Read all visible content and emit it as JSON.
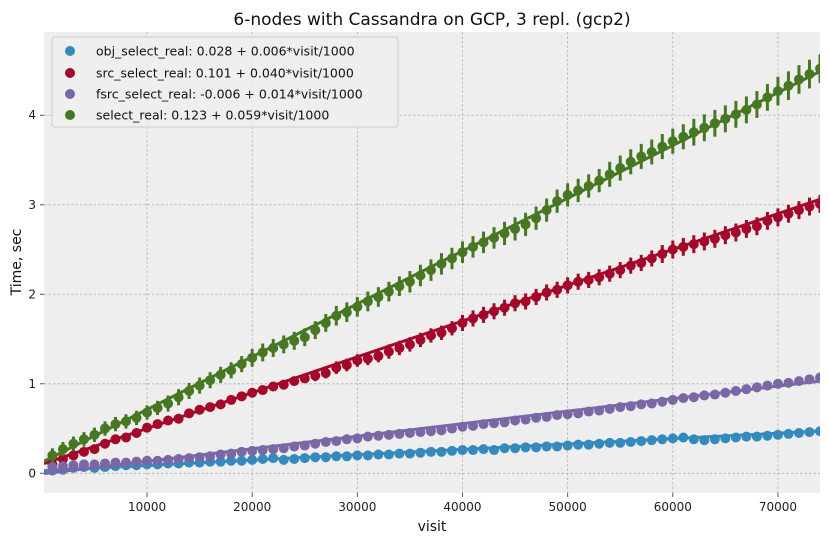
{
  "chart_data": {
    "type": "scatter",
    "title": "6-nodes with Cassandra on GCP, 3 repl. (gcp2)",
    "xlabel": "visit",
    "ylabel": "Time, sec",
    "xlim": [
      200,
      74000
    ],
    "ylim": [
      -0.22,
      4.93
    ],
    "xticks": [
      10000,
      20000,
      30000,
      40000,
      50000,
      60000,
      70000
    ],
    "yticks": [
      0,
      1,
      2,
      3,
      4
    ],
    "grid": true,
    "legend_position": "top-left",
    "x_start": 1000,
    "x_step": 1000,
    "series": [
      {
        "name": "obj_select_real: 0.028 + 0.006*visit/1000",
        "color": "#348abd",
        "fit": {
          "intercept": 0.028,
          "slope": 0.006
        },
        "values": [
          0.03,
          0.04,
          0.06,
          0.07,
          0.06,
          0.07,
          0.08,
          0.09,
          0.09,
          0.1,
          0.1,
          0.11,
          0.11,
          0.12,
          0.12,
          0.13,
          0.13,
          0.14,
          0.14,
          0.15,
          0.16,
          0.17,
          0.15,
          0.16,
          0.17,
          0.18,
          0.18,
          0.19,
          0.19,
          0.2,
          0.2,
          0.21,
          0.21,
          0.22,
          0.22,
          0.23,
          0.24,
          0.24,
          0.25,
          0.26,
          0.26,
          0.27,
          0.26,
          0.28,
          0.28,
          0.29,
          0.29,
          0.3,
          0.3,
          0.31,
          0.32,
          0.32,
          0.33,
          0.34,
          0.34,
          0.35,
          0.36,
          0.37,
          0.38,
          0.39,
          0.4,
          0.38,
          0.37,
          0.38,
          0.39,
          0.4,
          0.41,
          0.41,
          0.42,
          0.43,
          0.44,
          0.45,
          0.46,
          0.47
        ],
        "errors": [
          0.02,
          0.02,
          0.02,
          0.02,
          0.02,
          0.02,
          0.02,
          0.02,
          0.02,
          0.02,
          0.02,
          0.02,
          0.02,
          0.02,
          0.02,
          0.02,
          0.02,
          0.02,
          0.02,
          0.02,
          0.02,
          0.02,
          0.02,
          0.02,
          0.02,
          0.02,
          0.02,
          0.02,
          0.02,
          0.02,
          0.02,
          0.02,
          0.02,
          0.02,
          0.02,
          0.02,
          0.02,
          0.02,
          0.02,
          0.02,
          0.02,
          0.02,
          0.02,
          0.02,
          0.02,
          0.02,
          0.02,
          0.02,
          0.02,
          0.02,
          0.02,
          0.02,
          0.02,
          0.02,
          0.02,
          0.02,
          0.02,
          0.02,
          0.02,
          0.02,
          0.02,
          0.02,
          0.02,
          0.02,
          0.02,
          0.02,
          0.02,
          0.02,
          0.02,
          0.02,
          0.02,
          0.02,
          0.02,
          0.02
        ]
      },
      {
        "name": "src_select_real: 0.101 + 0.040*visit/1000",
        "color": "#a60628",
        "fit": {
          "intercept": 0.101,
          "slope": 0.04
        },
        "values": [
          0.1,
          0.16,
          0.2,
          0.24,
          0.27,
          0.33,
          0.38,
          0.4,
          0.45,
          0.51,
          0.55,
          0.59,
          0.61,
          0.67,
          0.71,
          0.74,
          0.77,
          0.82,
          0.86,
          0.9,
          0.93,
          0.97,
          0.99,
          1.03,
          1.06,
          1.09,
          1.12,
          1.18,
          1.21,
          1.26,
          1.28,
          1.31,
          1.36,
          1.4,
          1.44,
          1.49,
          1.54,
          1.57,
          1.62,
          1.68,
          1.73,
          1.77,
          1.81,
          1.85,
          1.9,
          1.92,
          1.97,
          2.02,
          2.05,
          2.1,
          2.14,
          2.16,
          2.19,
          2.23,
          2.27,
          2.32,
          2.35,
          2.4,
          2.45,
          2.5,
          2.53,
          2.56,
          2.59,
          2.62,
          2.66,
          2.69,
          2.73,
          2.76,
          2.82,
          2.86,
          2.9,
          2.94,
          2.98,
          3.01
        ],
        "errors": [
          0.04,
          0.04,
          0.04,
          0.04,
          0.04,
          0.04,
          0.04,
          0.04,
          0.04,
          0.04,
          0.04,
          0.04,
          0.04,
          0.04,
          0.04,
          0.04,
          0.04,
          0.04,
          0.04,
          0.04,
          0.05,
          0.05,
          0.05,
          0.05,
          0.05,
          0.06,
          0.06,
          0.07,
          0.07,
          0.07,
          0.07,
          0.07,
          0.08,
          0.08,
          0.08,
          0.08,
          0.08,
          0.08,
          0.08,
          0.09,
          0.09,
          0.09,
          0.09,
          0.09,
          0.09,
          0.09,
          0.09,
          0.09,
          0.09,
          0.09,
          0.09,
          0.09,
          0.09,
          0.09,
          0.09,
          0.09,
          0.09,
          0.09,
          0.1,
          0.1,
          0.1,
          0.1,
          0.1,
          0.1,
          0.1,
          0.1,
          0.1,
          0.1,
          0.1,
          0.1,
          0.1,
          0.1,
          0.1,
          0.1
        ]
      },
      {
        "name": "fsrc_select_real: -0.006 + 0.014*visit/1000",
        "color": "#7a68a6",
        "fit": {
          "intercept": -0.006,
          "slope": 0.014
        },
        "values": [
          0.07,
          0.08,
          0.09,
          0.1,
          0.1,
          0.11,
          0.12,
          0.12,
          0.13,
          0.14,
          0.14,
          0.15,
          0.16,
          0.17,
          0.18,
          0.19,
          0.21,
          0.22,
          0.24,
          0.25,
          0.26,
          0.27,
          0.28,
          0.3,
          0.31,
          0.33,
          0.35,
          0.36,
          0.38,
          0.39,
          0.41,
          0.42,
          0.43,
          0.44,
          0.45,
          0.46,
          0.47,
          0.48,
          0.5,
          0.52,
          0.53,
          0.55,
          0.56,
          0.57,
          0.59,
          0.6,
          0.62,
          0.63,
          0.65,
          0.66,
          0.67,
          0.69,
          0.7,
          0.72,
          0.74,
          0.75,
          0.77,
          0.78,
          0.8,
          0.82,
          0.84,
          0.85,
          0.87,
          0.88,
          0.9,
          0.92,
          0.94,
          0.96,
          0.98,
          1.0,
          1.01,
          1.03,
          1.05,
          1.07
        ],
        "errors": [
          0.03,
          0.03,
          0.03,
          0.03,
          0.03,
          0.03,
          0.03,
          0.03,
          0.03,
          0.03,
          0.03,
          0.03,
          0.03,
          0.03,
          0.03,
          0.03,
          0.03,
          0.03,
          0.03,
          0.03,
          0.03,
          0.03,
          0.03,
          0.03,
          0.03,
          0.03,
          0.03,
          0.03,
          0.03,
          0.03,
          0.03,
          0.03,
          0.03,
          0.03,
          0.03,
          0.03,
          0.03,
          0.03,
          0.03,
          0.03,
          0.04,
          0.04,
          0.04,
          0.04,
          0.04,
          0.04,
          0.04,
          0.04,
          0.04,
          0.04,
          0.04,
          0.04,
          0.04,
          0.04,
          0.04,
          0.04,
          0.04,
          0.04,
          0.04,
          0.04,
          0.04,
          0.04,
          0.04,
          0.04,
          0.04,
          0.04,
          0.04,
          0.04,
          0.04,
          0.04,
          0.04,
          0.04,
          0.04,
          0.04
        ]
      },
      {
        "name": "select_real: 0.123 + 0.059*visit/1000",
        "color": "#467821",
        "fit": {
          "intercept": 0.123,
          "slope": 0.059
        },
        "values": [
          0.2,
          0.27,
          0.33,
          0.38,
          0.43,
          0.5,
          0.55,
          0.58,
          0.62,
          0.68,
          0.73,
          0.78,
          0.85,
          0.92,
          0.98,
          1.04,
          1.1,
          1.15,
          1.22,
          1.29,
          1.35,
          1.4,
          1.44,
          1.48,
          1.52,
          1.6,
          1.68,
          1.76,
          1.8,
          1.86,
          1.92,
          1.97,
          2.03,
          2.09,
          2.14,
          2.21,
          2.27,
          2.34,
          2.4,
          2.47,
          2.53,
          2.58,
          2.63,
          2.68,
          2.73,
          2.78,
          2.85,
          2.94,
          3.04,
          3.11,
          3.16,
          3.21,
          3.27,
          3.34,
          3.41,
          3.48,
          3.54,
          3.59,
          3.65,
          3.71,
          3.76,
          3.81,
          3.86,
          3.91,
          3.96,
          4.01,
          4.06,
          4.12,
          4.2,
          4.27,
          4.33,
          4.4,
          4.46,
          4.52
        ],
        "errors": [
          0.08,
          0.08,
          0.08,
          0.08,
          0.08,
          0.08,
          0.08,
          0.08,
          0.08,
          0.08,
          0.08,
          0.09,
          0.09,
          0.09,
          0.09,
          0.09,
          0.09,
          0.09,
          0.09,
          0.1,
          0.1,
          0.1,
          0.1,
          0.1,
          0.1,
          0.1,
          0.1,
          0.11,
          0.11,
          0.11,
          0.11,
          0.11,
          0.11,
          0.11,
          0.12,
          0.12,
          0.12,
          0.12,
          0.12,
          0.12,
          0.12,
          0.12,
          0.12,
          0.13,
          0.13,
          0.13,
          0.13,
          0.13,
          0.13,
          0.13,
          0.13,
          0.13,
          0.13,
          0.14,
          0.14,
          0.14,
          0.14,
          0.14,
          0.14,
          0.14,
          0.14,
          0.15,
          0.15,
          0.15,
          0.15,
          0.15,
          0.15,
          0.15,
          0.15,
          0.16,
          0.16,
          0.16,
          0.16,
          0.16
        ]
      }
    ]
  }
}
